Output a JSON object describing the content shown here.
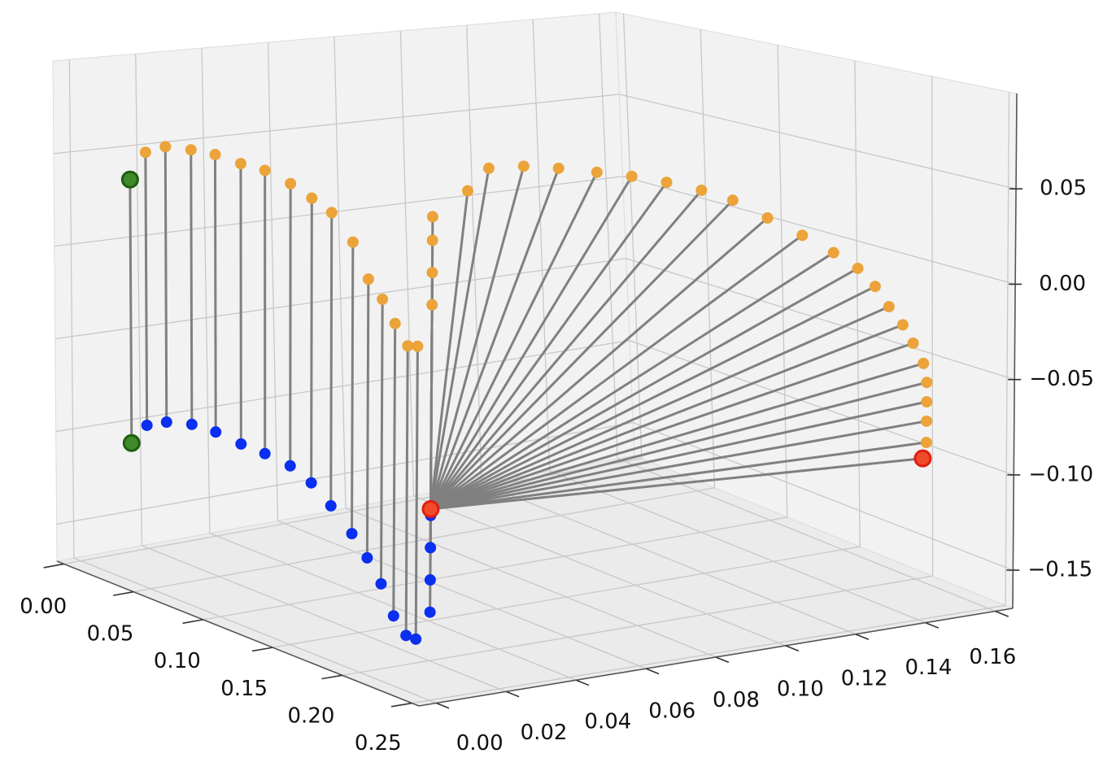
{
  "chart_data": {
    "type": "scatter3d",
    "xlim": [
      -0.005,
      0.255
    ],
    "ylim": [
      -0.005,
      0.165
    ],
    "zlim": [
      -0.17,
      0.1
    ],
    "xticks": [
      {
        "value": 0,
        "label": "0.00"
      },
      {
        "value": 0.05,
        "label": "0.05"
      },
      {
        "value": 0.1,
        "label": "0.10"
      },
      {
        "value": 0.15,
        "label": "0.15"
      },
      {
        "value": 0.2,
        "label": "0.20"
      },
      {
        "value": 0.25,
        "label": "0.25"
      }
    ],
    "yticks": [
      {
        "value": 0,
        "label": "0.00"
      },
      {
        "value": 0.02,
        "label": "0.02"
      },
      {
        "value": 0.04,
        "label": "0.04"
      },
      {
        "value": 0.06,
        "label": "0.06"
      },
      {
        "value": 0.08,
        "label": "0.08"
      },
      {
        "value": 0.1,
        "label": "0.10"
      },
      {
        "value": 0.12,
        "label": "0.12"
      },
      {
        "value": 0.14,
        "label": "0.14"
      },
      {
        "value": 0.16,
        "label": "0.16"
      }
    ],
    "zticks": [
      {
        "value": -0.15,
        "label": "−0.15"
      },
      {
        "value": -0.1,
        "label": "−0.10"
      },
      {
        "value": -0.05,
        "label": "−0.05"
      },
      {
        "value": 0,
        "label": "0.00"
      },
      {
        "value": 0.05,
        "label": "0.05"
      }
    ],
    "grid": true,
    "line_color": "#808080",
    "series": [
      {
        "color": "#eba33a",
        "x": [
          0.037,
          0.048,
          0.062,
          0.08,
          0.097,
          0.115,
          0.132,
          0.15,
          0.165,
          0.179,
          0.194,
          0.205,
          0.215,
          0.224,
          0.233,
          0.24,
          0.25,
          0.25,
          0.25,
          0.25
        ],
        "y": [
          0,
          0,
          0,
          0,
          0,
          0,
          0,
          0,
          0,
          0,
          0,
          0,
          0,
          0,
          0,
          0,
          0,
          0,
          0,
          0
        ],
        "z": [
          0.042,
          0.058,
          0.063,
          0.064,
          0.064,
          0.062,
          0.061,
          0.057,
          0.052,
          0.047,
          0.035,
          0.019,
          0.011,
          0.001,
          -0.008,
          -0.007,
          0.055,
          0.044,
          0.029,
          0.014
        ]
      },
      {
        "color": "#0a2ff0",
        "line_to": 0,
        "x": [
          0.037,
          0.048,
          0.062,
          0.08,
          0.097,
          0.115,
          0.132,
          0.15,
          0.165,
          0.179,
          0.194,
          0.205,
          0.215,
          0.224,
          0.233,
          0.24,
          0.25,
          0.25,
          0.25,
          0.25
        ],
        "y": [
          0,
          0,
          0,
          0,
          0,
          0,
          0,
          0,
          0,
          0,
          0,
          0,
          0,
          0,
          0,
          0,
          0,
          0,
          0,
          0
        ],
        "z": [
          -0.097,
          -0.085,
          -0.08,
          -0.077,
          -0.077,
          -0.079,
          -0.08,
          -0.082,
          -0.087,
          -0.095,
          -0.105,
          -0.114,
          -0.124,
          -0.137,
          -0.144,
          -0.144,
          -0.084,
          -0.099,
          -0.114,
          -0.129
        ]
      },
      {
        "color": "#eba33a",
        "line_to": 3,
        "x": [
          0.25,
          0.25,
          0.25,
          0.25,
          0.25,
          0.25,
          0.25,
          0.25,
          0.25,
          0.25,
          0.25,
          0.25,
          0.25,
          0.25,
          0.25,
          0.25,
          0.25,
          0.25,
          0.25,
          0.25,
          0.25,
          0.25
        ],
        "y": [
          0.01,
          0.016,
          0.026,
          0.036,
          0.047,
          0.057,
          0.067,
          0.077,
          0.086,
          0.096,
          0.106,
          0.115,
          0.122,
          0.127,
          0.131,
          0.135,
          0.138,
          0.141,
          0.142,
          0.142,
          0.142,
          0.142
        ],
        "z": [
          0.066,
          0.076,
          0.076,
          0.074,
          0.071,
          0.068,
          0.064,
          0.059,
          0.053,
          0.043,
          0.033,
          0.023,
          0.014,
          0.004,
          -0.007,
          -0.017,
          -0.027,
          -0.038,
          -0.048,
          -0.058,
          -0.068,
          -0.079
        ]
      },
      {
        "color": "#f04a2a",
        "edgecolor": "#e01e10",
        "marker": "large",
        "x": [
          0.25
        ],
        "y": [
          0
        ],
        "z": [
          -0.081
        ]
      },
      {
        "color": "#f04a2a",
        "edgecolor": "#e01e10",
        "marker": "large",
        "line_to": 3,
        "x": [
          0.25
        ],
        "y": [
          0.141
        ],
        "z": [
          -0.087
        ]
      },
      {
        "color": "#3f8a2a",
        "edgecolor": "#1e5e10",
        "marker": "large",
        "x": [
          0.037,
          0.037
        ],
        "y": [
          0,
          0
        ],
        "z": [
          0.042,
          -0.097
        ]
      }
    ]
  }
}
